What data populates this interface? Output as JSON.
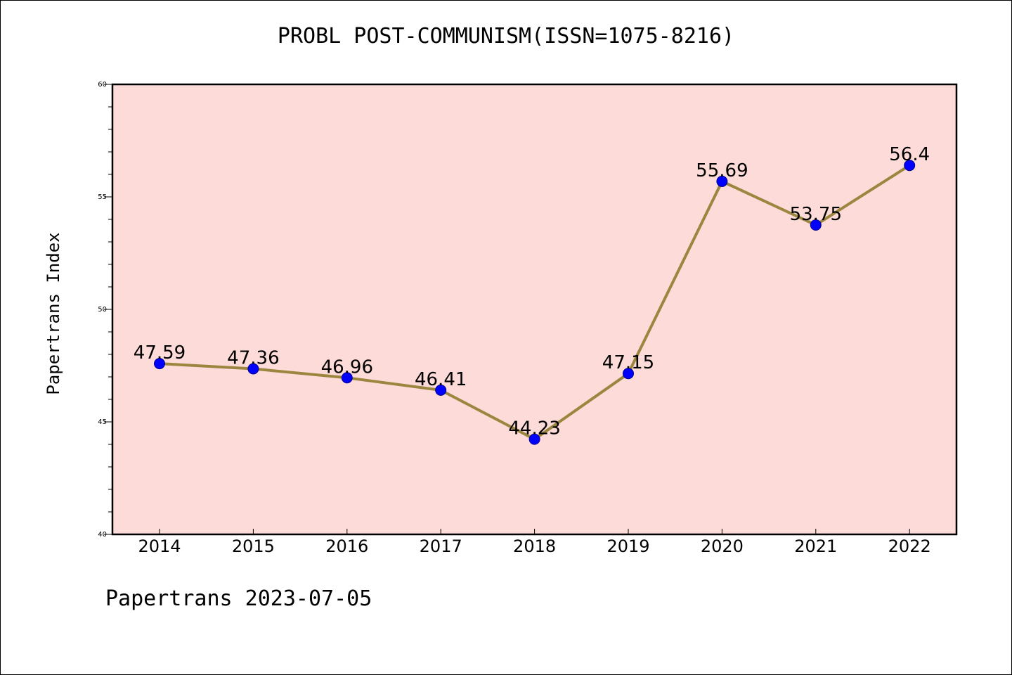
{
  "chart_data": {
    "type": "line",
    "title": "PROBL POST-COMMUNISM(ISSN=1075-8216)",
    "xlabel": "",
    "ylabel": "Papertrans Index",
    "categories": [
      "2014",
      "2015",
      "2016",
      "2017",
      "2018",
      "2019",
      "2020",
      "2021",
      "2022"
    ],
    "values": [
      47.59,
      47.36,
      46.96,
      46.41,
      44.23,
      47.15,
      55.69,
      53.75,
      56.4
    ],
    "data_labels": [
      "47.59",
      "47.36",
      "46.96",
      "46.41",
      "44.23",
      "47.15",
      "55.69",
      "53.75",
      "56.4"
    ],
    "ylim": [
      40,
      60
    ],
    "yticks": [
      "40",
      "45",
      "50",
      "55",
      "60"
    ],
    "grid": false,
    "colors": {
      "plot_bg": "#fddbd8",
      "line": "#9b8640",
      "marker": "#0000ff"
    }
  },
  "footer": "Papertrans 2023-07-05"
}
